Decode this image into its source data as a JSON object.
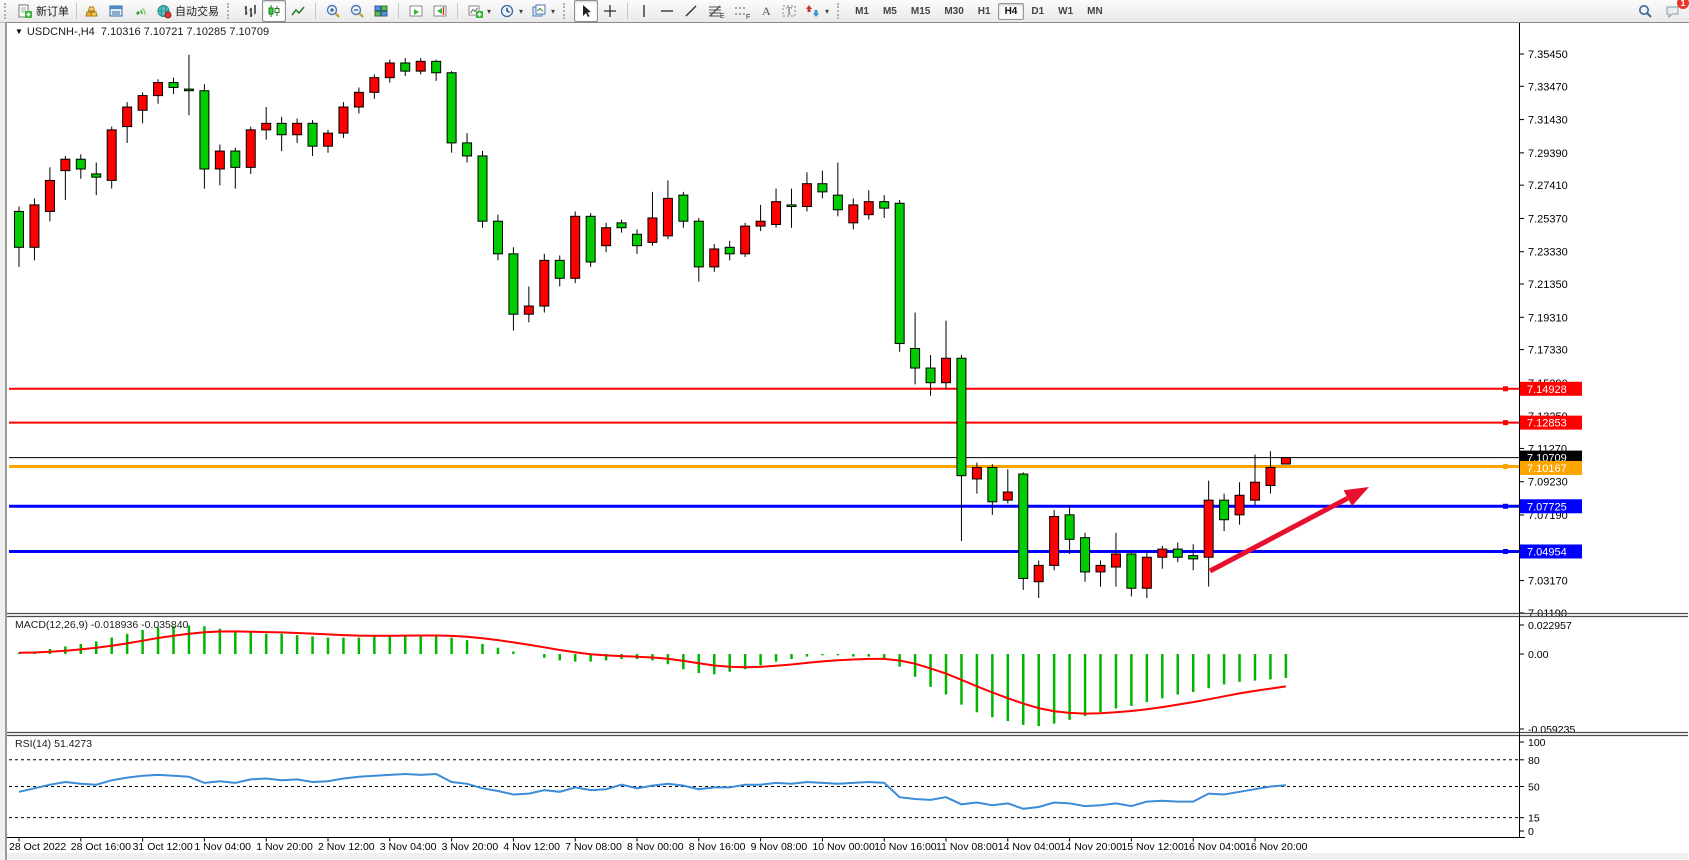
{
  "toolbar": {
    "new_order_label": "新订单",
    "autotrade_label": "自动交易",
    "timeframes": [
      "M1",
      "M5",
      "M15",
      "M30",
      "H1",
      "H4",
      "D1",
      "W1",
      "MN"
    ],
    "active_timeframe": "H4",
    "notification_badge": "1"
  },
  "chart": {
    "symbol_header": "USDCNH-,H4",
    "ohlc_text": "7.10316 7.10721 7.10285 7.10709",
    "macd_label": "MACD(12,26,9)",
    "macd_values": "-0.018936 -0.035840",
    "rsi_label": "RSI(14)",
    "rsi_value": "51.4273"
  },
  "chart_data": {
    "type": "candlestick",
    "symbol": "USDCNH-",
    "timeframe": "H4",
    "current_bar": {
      "open": 7.10316,
      "high": 7.10721,
      "low": 7.10285,
      "close": 7.10709
    },
    "ylim": [
      7.0119,
      7.3735
    ],
    "price_axis_ticks": [
      "7.35450",
      "7.33470",
      "7.31430",
      "7.29390",
      "7.27410",
      "7.25370",
      "7.23330",
      "7.21350",
      "7.19310",
      "7.17330",
      "7.15290",
      "7.13250",
      "7.11270",
      "7.09230",
      "7.07190",
      "7.03170",
      "7.01190"
    ],
    "time_labels": [
      "28 Oct 2022",
      "28 Oct 16:00",
      "31 Oct 12:00",
      "1 Nov 04:00",
      "1 Nov 20:00",
      "2 Nov 12:00",
      "3 Nov 04:00",
      "3 Nov 20:00",
      "4 Nov 12:00",
      "7 Nov 08:00",
      "8 Nov 00:00",
      "8 Nov 16:00",
      "9 Nov 08:00",
      "10 Nov 00:00",
      "10 Nov 16:00",
      "11 Nov 08:00",
      "14 Nov 04:00",
      "14 Nov 20:00",
      "15 Nov 12:00",
      "16 Nov 04:00",
      "16 Nov 20:00"
    ],
    "time_label_every_n_candles": 4,
    "candles": [
      [
        7.258,
        7.261,
        7.224,
        7.236
      ],
      [
        7.236,
        7.266,
        7.228,
        7.262
      ],
      [
        7.258,
        7.285,
        7.252,
        7.277
      ],
      [
        7.283,
        7.292,
        7.265,
        7.29
      ],
      [
        7.29,
        7.293,
        7.278,
        7.284
      ],
      [
        7.281,
        7.288,
        7.268,
        7.279
      ],
      [
        7.277,
        7.31,
        7.272,
        7.308
      ],
      [
        7.31,
        7.325,
        7.3,
        7.322
      ],
      [
        7.32,
        7.331,
        7.312,
        7.329
      ],
      [
        7.329,
        7.339,
        7.324,
        7.337
      ],
      [
        7.337,
        7.34,
        7.33,
        7.334
      ],
      [
        7.333,
        7.354,
        7.317,
        7.332
      ],
      [
        7.332,
        7.336,
        7.272,
        7.284
      ],
      [
        7.284,
        7.299,
        7.274,
        7.295
      ],
      [
        7.295,
        7.297,
        7.272,
        7.285
      ],
      [
        7.285,
        7.31,
        7.281,
        7.308
      ],
      [
        7.308,
        7.322,
        7.302,
        7.312
      ],
      [
        7.312,
        7.316,
        7.295,
        7.305
      ],
      [
        7.305,
        7.315,
        7.3,
        7.312
      ],
      [
        7.312,
        7.314,
        7.292,
        7.298
      ],
      [
        7.298,
        7.308,
        7.294,
        7.306
      ],
      [
        7.306,
        7.325,
        7.303,
        7.322
      ],
      [
        7.322,
        7.334,
        7.318,
        7.331
      ],
      [
        7.331,
        7.342,
        7.327,
        7.34
      ],
      [
        7.34,
        7.351,
        7.337,
        7.349
      ],
      [
        7.349,
        7.352,
        7.341,
        7.344
      ],
      [
        7.344,
        7.352,
        7.342,
        7.35
      ],
      [
        7.35,
        7.351,
        7.338,
        7.343
      ],
      [
        7.343,
        7.344,
        7.294,
        7.3
      ],
      [
        7.3,
        7.306,
        7.288,
        7.292
      ],
      [
        7.292,
        7.295,
        7.248,
        7.252
      ],
      [
        7.252,
        7.256,
        7.228,
        7.232
      ],
      [
        7.232,
        7.236,
        7.185,
        7.195
      ],
      [
        7.195,
        7.212,
        7.19,
        7.2
      ],
      [
        7.2,
        7.232,
        7.196,
        7.228
      ],
      [
        7.228,
        7.231,
        7.212,
        7.217
      ],
      [
        7.217,
        7.258,
        7.214,
        7.255
      ],
      [
        7.255,
        7.257,
        7.224,
        7.227
      ],
      [
        7.237,
        7.251,
        7.233,
        7.248
      ],
      [
        7.251,
        7.253,
        7.245,
        7.248
      ],
      [
        7.244,
        7.247,
        7.232,
        7.237
      ],
      [
        7.239,
        7.27,
        7.237,
        7.254
      ],
      [
        7.243,
        7.277,
        7.241,
        7.266
      ],
      [
        7.268,
        7.27,
        7.248,
        7.252
      ],
      [
        7.252,
        7.254,
        7.215,
        7.224
      ],
      [
        7.224,
        7.238,
        7.221,
        7.235
      ],
      [
        7.236,
        7.24,
        7.228,
        7.232
      ],
      [
        7.232,
        7.251,
        7.23,
        7.249
      ],
      [
        7.249,
        7.262,
        7.246,
        7.252
      ],
      [
        7.25,
        7.272,
        7.248,
        7.264
      ],
      [
        7.262,
        7.272,
        7.248,
        7.261
      ],
      [
        7.261,
        7.282,
        7.258,
        7.275
      ],
      [
        7.275,
        7.283,
        7.266,
        7.27
      ],
      [
        7.268,
        7.288,
        7.255,
        7.259
      ],
      [
        7.251,
        7.266,
        7.247,
        7.262
      ],
      [
        7.256,
        7.271,
        7.253,
        7.264
      ],
      [
        7.264,
        7.268,
        7.254,
        7.26
      ],
      [
        7.263,
        7.265,
        7.172,
        7.177
      ],
      [
        7.174,
        7.196,
        7.152,
        7.162
      ],
      [
        7.162,
        7.17,
        7.145,
        7.153
      ],
      [
        7.153,
        7.191,
        7.149,
        7.168
      ],
      [
        7.168,
        7.17,
        7.056,
        7.096
      ],
      [
        7.094,
        7.104,
        7.085,
        7.101
      ],
      [
        7.101,
        7.103,
        7.072,
        7.08
      ],
      [
        7.081,
        7.1,
        7.079,
        7.086
      ],
      [
        7.097,
        7.098,
        7.026,
        7.033
      ],
      [
        7.031,
        7.044,
        7.021,
        7.041
      ],
      [
        7.041,
        7.075,
        7.038,
        7.071
      ],
      [
        7.072,
        7.078,
        7.048,
        7.057
      ],
      [
        7.058,
        7.061,
        7.031,
        7.037
      ],
      [
        7.037,
        7.044,
        7.028,
        7.041
      ],
      [
        7.04,
        7.061,
        7.028,
        7.048
      ],
      [
        7.048,
        7.05,
        7.022,
        7.027
      ],
      [
        7.027,
        7.05,
        7.021,
        7.046
      ],
      [
        7.046,
        7.053,
        7.039,
        7.051
      ],
      [
        7.051,
        7.055,
        7.043,
        7.046
      ],
      [
        7.047,
        7.054,
        7.038,
        7.045
      ],
      [
        7.046,
        7.093,
        7.028,
        7.081
      ],
      [
        7.081,
        7.085,
        7.062,
        7.069
      ],
      [
        7.072,
        7.092,
        7.066,
        7.084
      ],
      [
        7.081,
        7.109,
        7.078,
        7.092
      ],
      [
        7.09,
        7.111,
        7.085,
        7.101
      ],
      [
        7.10316,
        7.10721,
        7.10285,
        7.10709
      ]
    ],
    "hlines": [
      {
        "price": 7.14928,
        "label": "7.14928",
        "color": "#ff0000",
        "width": 2
      },
      {
        "price": 7.12853,
        "label": "7.12853",
        "color": "#ff0000",
        "width": 2
      },
      {
        "price": 7.10167,
        "label": "7.10167",
        "color": "#ffa500",
        "width": 3
      },
      {
        "price": 7.07725,
        "label": "7.07725",
        "color": "#0000ff",
        "width": 3
      },
      {
        "price": 7.04954,
        "label": "7.04954",
        "color": "#0000ff",
        "width": 3
      }
    ],
    "last_price_line": {
      "price": 7.10709,
      "label": "7.10709",
      "color": "#000000"
    },
    "macd": {
      "params": "12,26,9",
      "histogram_current": -0.018936,
      "signal_current": -0.03584,
      "scale_ticks": [
        "0.022957",
        "0.00",
        "-0.059235"
      ],
      "histogram": [
        0.001,
        0.002,
        0.004,
        0.006,
        0.008,
        0.01,
        0.013,
        0.016,
        0.019,
        0.021,
        0.022,
        0.0225,
        0.022,
        0.02,
        0.018,
        0.017,
        0.016,
        0.016,
        0.015,
        0.014,
        0.013,
        0.013,
        0.013,
        0.014,
        0.0145,
        0.015,
        0.015,
        0.0145,
        0.013,
        0.011,
        0.008,
        0.005,
        0.002,
        0.0,
        -0.003,
        -0.005,
        -0.006,
        -0.006,
        -0.005,
        -0.004,
        -0.004,
        -0.005,
        -0.008,
        -0.012,
        -0.015,
        -0.016,
        -0.014,
        -0.012,
        -0.009,
        -0.006,
        -0.004,
        -0.002,
        -0.001,
        -0.001,
        -0.002,
        -0.002,
        -0.004,
        -0.01,
        -0.018,
        -0.026,
        -0.032,
        -0.04,
        -0.046,
        -0.05,
        -0.053,
        -0.056,
        -0.057,
        -0.055,
        -0.052,
        -0.049,
        -0.046,
        -0.043,
        -0.041,
        -0.038,
        -0.035,
        -0.032,
        -0.03,
        -0.027,
        -0.024,
        -0.022,
        -0.021,
        -0.02,
        -0.0189
      ]
    },
    "rsi": {
      "period": 14,
      "current": 51.4273,
      "levels": [
        80,
        50,
        15
      ],
      "scale_ticks": [
        "100",
        "80",
        "50",
        "15",
        "0"
      ],
      "values": [
        44,
        48,
        52,
        55,
        53,
        52,
        57,
        60,
        62,
        63,
        62,
        61,
        54,
        56,
        54,
        58,
        59,
        57,
        58,
        55,
        56,
        59,
        61,
        62,
        63,
        64,
        63,
        64,
        55,
        53,
        48,
        45,
        41,
        42,
        46,
        44,
        49,
        46,
        47,
        52,
        48,
        51,
        53,
        51,
        47,
        49,
        49,
        52,
        52,
        54,
        53,
        55,
        54,
        53,
        54,
        55,
        54,
        38,
        36,
        35,
        38,
        30,
        32,
        29,
        31,
        25,
        27,
        32,
        31,
        28,
        29,
        31,
        28,
        33,
        34,
        33,
        33,
        42,
        41,
        44,
        47,
        50,
        51.4
      ]
    },
    "annotation_arrow": {
      "from": [
        1203,
        548
      ],
      "to": [
        1362,
        464
      ],
      "color": "#e8112d",
      "width": 5
    },
    "colors": {
      "up_body": "#ff0000",
      "down_body": "#00cc00",
      "outline": "#000000",
      "macd_hist": "#00b400",
      "macd_signal": "#ff0000",
      "rsi_line": "#3c8cd8",
      "axis": "#000000",
      "label_text": "#ffffff"
    }
  }
}
